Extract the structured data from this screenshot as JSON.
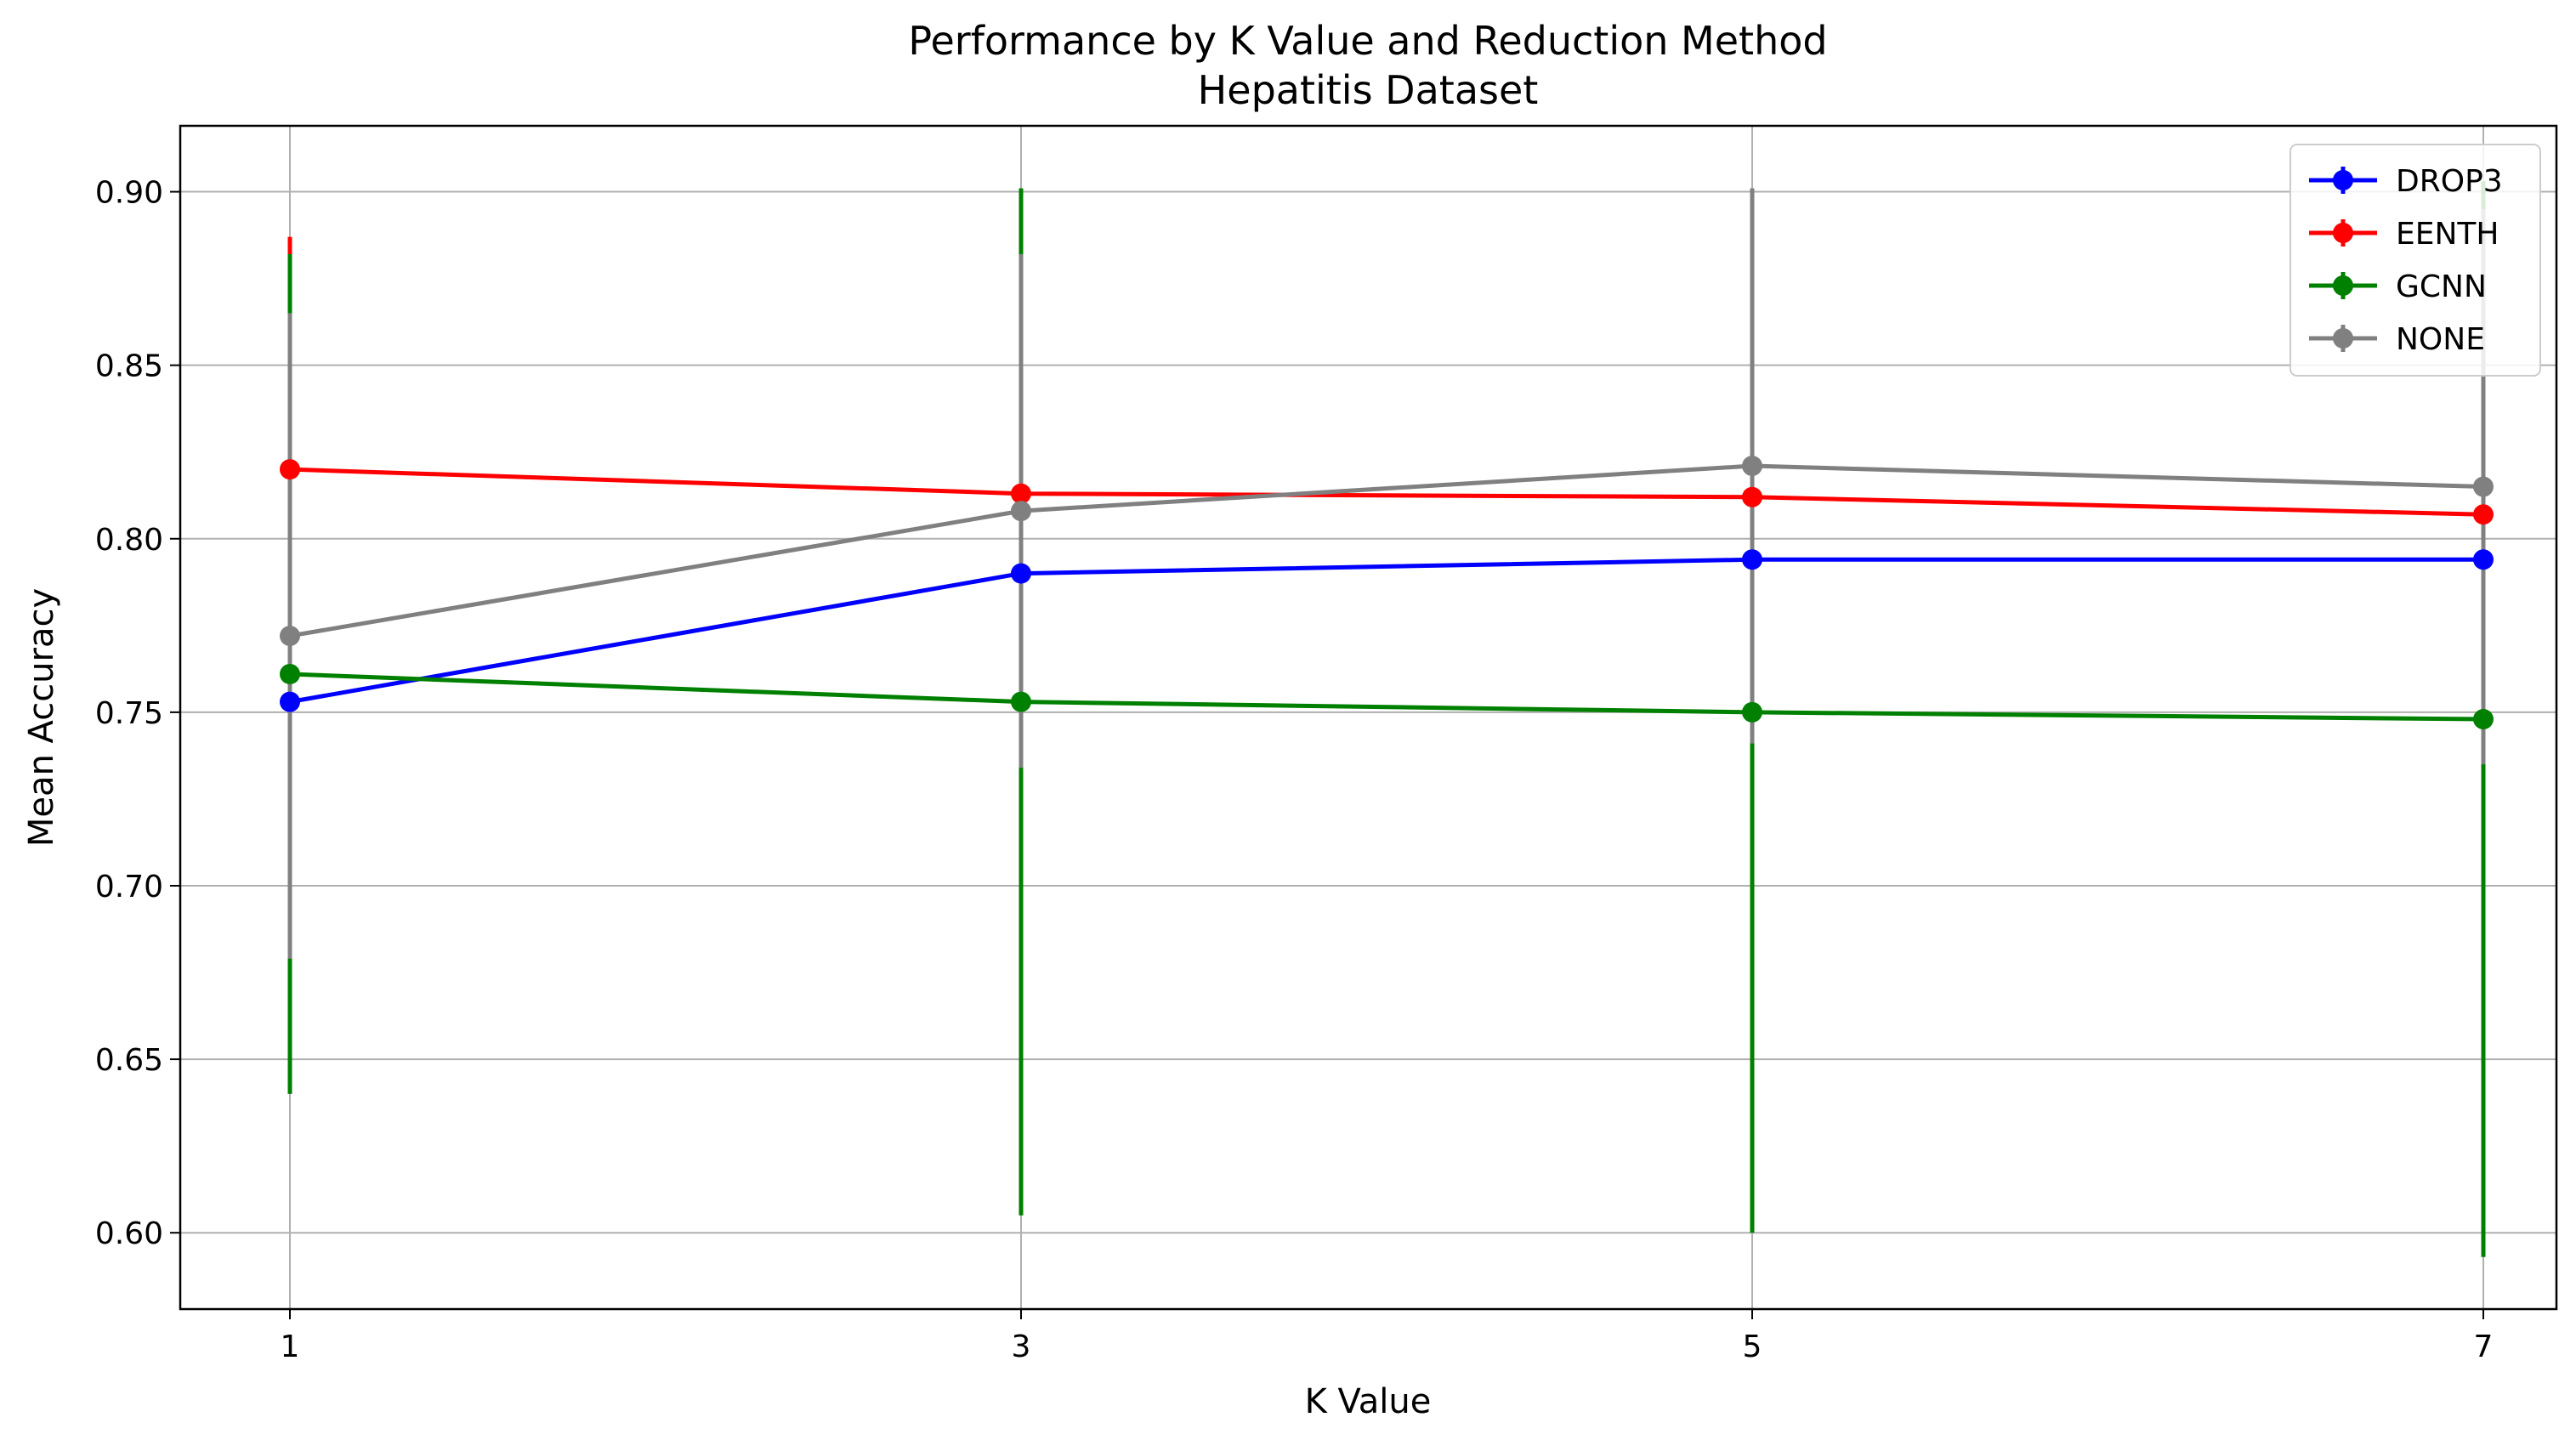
{
  "chart_data": {
    "type": "line",
    "title": "Performance by K Value and Reduction Method",
    "subtitle": "Hepatitis Dataset",
    "xlabel": "K Value",
    "ylabel": "Mean Accuracy",
    "x": [
      1,
      3,
      5,
      7
    ],
    "x_tick_labels": [
      "1",
      "3",
      "5",
      "7"
    ],
    "xlim": [
      0.7,
      7.2
    ],
    "ylim": [
      0.578,
      0.919
    ],
    "y_ticks": [
      0.6,
      0.65,
      0.7,
      0.75,
      0.8,
      0.85,
      0.9
    ],
    "y_tick_labels": [
      "0.60",
      "0.65",
      "0.70",
      "0.75",
      "0.80",
      "0.85",
      "0.90"
    ],
    "grid": true,
    "legend_position": "top-right",
    "series": [
      {
        "name": "DROP3",
        "color": "#0000ff",
        "values": [
          0.753,
          0.79,
          0.794,
          0.794
        ],
        "error": [
          0.09,
          0.075,
          0.08,
          0.08
        ]
      },
      {
        "name": "EENTH",
        "color": "#ff0000",
        "values": [
          0.82,
          0.813,
          0.812,
          0.807
        ],
        "error": [
          0.067,
          0.07,
          0.088,
          0.09
        ]
      },
      {
        "name": "GCNN",
        "color": "#008000",
        "values": [
          0.761,
          0.753,
          0.75,
          0.748
        ],
        "error": [
          0.121,
          0.148,
          0.15,
          0.155
        ]
      },
      {
        "name": "NONE",
        "color": "#808080",
        "values": [
          0.772,
          0.808,
          0.821,
          0.815
        ],
        "error": [
          0.093,
          0.074,
          0.08,
          0.08
        ]
      }
    ]
  }
}
